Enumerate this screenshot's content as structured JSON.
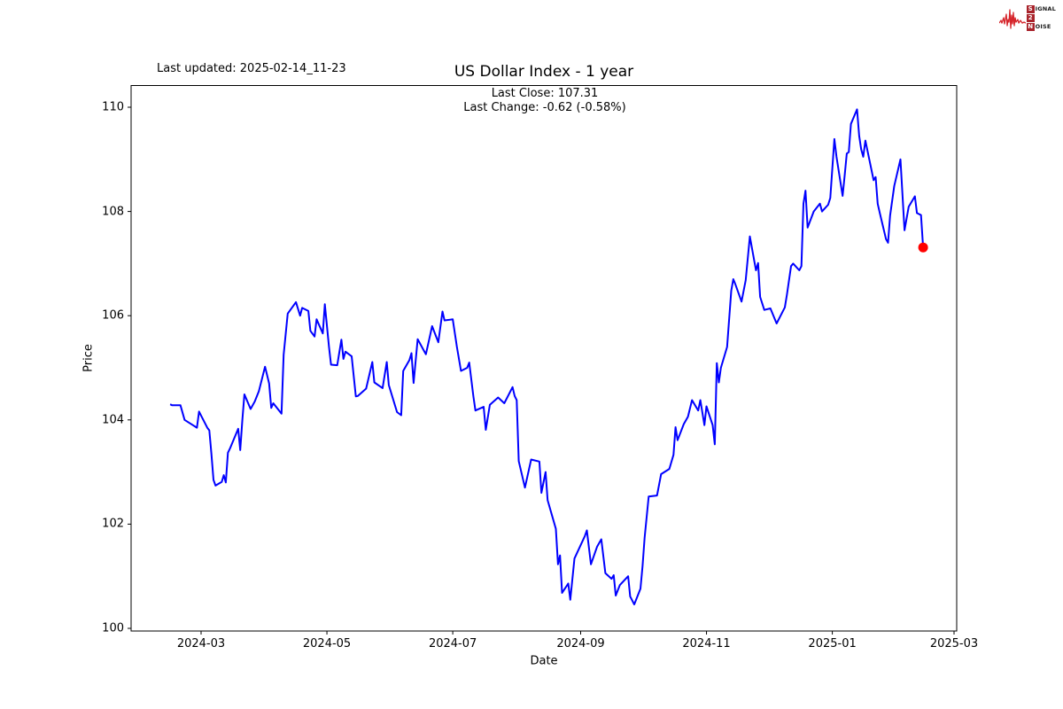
{
  "header": {
    "last_updated": "Last updated: 2025-02-14_11-23",
    "title": "US Dollar Index - 1 year",
    "annotation_line1": "Last Close: 107.31",
    "annotation_line2": "Last Change: -0.62 (-0.58%)"
  },
  "logo": {
    "word1_initial": "S",
    "word1_rest": "IGNAL",
    "word2": "2",
    "word3_initial": "N",
    "word3_rest": "OISE",
    "waveform_color": "#d6252b",
    "box_color": "#a8232b"
  },
  "chart_data": {
    "type": "line",
    "title": "US Dollar Index - 1 year",
    "xlabel": "Date",
    "ylabel": "Price",
    "x_ticks": [
      "2024-03",
      "2024-05",
      "2024-07",
      "2024-09",
      "2024-11",
      "2025-01",
      "2025-03"
    ],
    "y_ticks": [
      100,
      102,
      104,
      106,
      108,
      110
    ],
    "ylim": [
      99.95,
      110.45
    ],
    "xlim": [
      "2024-01-28",
      "2025-03-03"
    ],
    "grid": false,
    "legend": null,
    "line_color": "#0000ff",
    "last_point_color": "#ff0000",
    "last_close": 107.31,
    "last_change": -0.62,
    "last_change_pct": "-0.58%",
    "series": [
      {
        "name": "US Dollar Index",
        "points": [
          [
            "2024-02-15",
            104.3
          ],
          [
            "2024-02-16",
            104.28
          ],
          [
            "2024-02-20",
            104.28
          ],
          [
            "2024-02-22",
            104.0
          ],
          [
            "2024-02-26",
            103.9
          ],
          [
            "2024-02-28",
            103.85
          ],
          [
            "2024-02-29",
            104.16
          ],
          [
            "2024-03-04",
            103.85
          ],
          [
            "2024-03-05",
            103.8
          ],
          [
            "2024-03-06",
            103.36
          ],
          [
            "2024-03-07",
            102.85
          ],
          [
            "2024-03-08",
            102.74
          ],
          [
            "2024-03-11",
            102.81
          ],
          [
            "2024-03-12",
            102.94
          ],
          [
            "2024-03-13",
            102.8
          ],
          [
            "2024-03-14",
            103.37
          ],
          [
            "2024-03-15",
            103.45
          ],
          [
            "2024-03-19",
            103.83
          ],
          [
            "2024-03-20",
            103.42
          ],
          [
            "2024-03-21",
            104.0
          ],
          [
            "2024-03-22",
            104.49
          ],
          [
            "2024-03-25",
            104.21
          ],
          [
            "2024-03-27",
            104.35
          ],
          [
            "2024-03-29",
            104.55
          ],
          [
            "2024-04-01",
            105.02
          ],
          [
            "2024-04-03",
            104.7
          ],
          [
            "2024-04-04",
            104.23
          ],
          [
            "2024-04-05",
            104.32
          ],
          [
            "2024-04-09",
            104.12
          ],
          [
            "2024-04-10",
            105.25
          ],
          [
            "2024-04-12",
            106.04
          ],
          [
            "2024-04-16",
            106.26
          ],
          [
            "2024-04-18",
            106.0
          ],
          [
            "2024-04-19",
            106.15
          ],
          [
            "2024-04-22",
            106.09
          ],
          [
            "2024-04-23",
            105.71
          ],
          [
            "2024-04-25",
            105.6
          ],
          [
            "2024-04-26",
            105.93
          ],
          [
            "2024-04-29",
            105.66
          ],
          [
            "2024-04-30",
            106.22
          ],
          [
            "2024-05-02",
            105.4
          ],
          [
            "2024-05-03",
            105.06
          ],
          [
            "2024-05-06",
            105.05
          ],
          [
            "2024-05-08",
            105.54
          ],
          [
            "2024-05-09",
            105.17
          ],
          [
            "2024-05-10",
            105.31
          ],
          [
            "2024-05-13",
            105.22
          ],
          [
            "2024-05-15",
            104.45
          ],
          [
            "2024-05-16",
            104.46
          ],
          [
            "2024-05-20",
            104.6
          ],
          [
            "2024-05-23",
            105.11
          ],
          [
            "2024-05-24",
            104.72
          ],
          [
            "2024-05-28",
            104.61
          ],
          [
            "2024-05-30",
            105.11
          ],
          [
            "2024-05-31",
            104.67
          ],
          [
            "2024-06-04",
            104.15
          ],
          [
            "2024-06-06",
            104.09
          ],
          [
            "2024-06-07",
            104.94
          ],
          [
            "2024-06-10",
            105.15
          ],
          [
            "2024-06-11",
            105.28
          ],
          [
            "2024-06-12",
            104.71
          ],
          [
            "2024-06-14",
            105.55
          ],
          [
            "2024-06-17",
            105.33
          ],
          [
            "2024-06-18",
            105.26
          ],
          [
            "2024-06-21",
            105.8
          ],
          [
            "2024-06-24",
            105.49
          ],
          [
            "2024-06-26",
            106.08
          ],
          [
            "2024-06-27",
            105.91
          ],
          [
            "2024-07-01",
            105.93
          ],
          [
            "2024-07-03",
            105.4
          ],
          [
            "2024-07-05",
            104.94
          ],
          [
            "2024-07-08",
            105.0
          ],
          [
            "2024-07-09",
            105.1
          ],
          [
            "2024-07-11",
            104.45
          ],
          [
            "2024-07-12",
            104.18
          ],
          [
            "2024-07-16",
            104.25
          ],
          [
            "2024-07-17",
            103.81
          ],
          [
            "2024-07-19",
            104.29
          ],
          [
            "2024-07-23",
            104.43
          ],
          [
            "2024-07-26",
            104.32
          ],
          [
            "2024-07-30",
            104.63
          ],
          [
            "2024-07-31",
            104.46
          ],
          [
            "2024-08-01",
            104.38
          ],
          [
            "2024-08-02",
            103.21
          ],
          [
            "2024-08-05",
            102.7
          ],
          [
            "2024-08-08",
            103.24
          ],
          [
            "2024-08-12",
            103.2
          ],
          [
            "2024-08-13",
            102.6
          ],
          [
            "2024-08-15",
            103.0
          ],
          [
            "2024-08-16",
            102.46
          ],
          [
            "2024-08-20",
            101.91
          ],
          [
            "2024-08-21",
            101.23
          ],
          [
            "2024-08-22",
            101.4
          ],
          [
            "2024-08-23",
            100.68
          ],
          [
            "2024-08-26",
            100.86
          ],
          [
            "2024-08-27",
            100.55
          ],
          [
            "2024-08-29",
            101.34
          ],
          [
            "2024-09-03",
            101.77
          ],
          [
            "2024-09-04",
            101.88
          ],
          [
            "2024-09-06",
            101.23
          ],
          [
            "2024-09-09",
            101.57
          ],
          [
            "2024-09-11",
            101.71
          ],
          [
            "2024-09-13",
            101.06
          ],
          [
            "2024-09-16",
            100.95
          ],
          [
            "2024-09-17",
            101.02
          ],
          [
            "2024-09-18",
            100.63
          ],
          [
            "2024-09-20",
            100.83
          ],
          [
            "2024-09-24",
            101.0
          ],
          [
            "2024-09-25",
            100.61
          ],
          [
            "2024-09-27",
            100.46
          ],
          [
            "2024-09-30",
            100.76
          ],
          [
            "2024-10-01",
            101.2
          ],
          [
            "2024-10-02",
            101.74
          ],
          [
            "2024-10-04",
            102.53
          ],
          [
            "2024-10-08",
            102.55
          ],
          [
            "2024-10-10",
            102.96
          ],
          [
            "2024-10-14",
            103.06
          ],
          [
            "2024-10-16",
            103.33
          ],
          [
            "2024-10-17",
            103.86
          ],
          [
            "2024-10-18",
            103.61
          ],
          [
            "2024-10-21",
            103.92
          ],
          [
            "2024-10-23",
            104.06
          ],
          [
            "2024-10-25",
            104.38
          ],
          [
            "2024-10-28",
            104.18
          ],
          [
            "2024-10-29",
            104.38
          ],
          [
            "2024-10-31",
            103.9
          ],
          [
            "2024-11-01",
            104.26
          ],
          [
            "2024-11-04",
            103.9
          ],
          [
            "2024-11-05",
            103.53
          ],
          [
            "2024-11-06",
            105.09
          ],
          [
            "2024-11-07",
            104.72
          ],
          [
            "2024-11-08",
            105.0
          ],
          [
            "2024-11-11",
            105.4
          ],
          [
            "2024-11-13",
            106.48
          ],
          [
            "2024-11-14",
            106.7
          ],
          [
            "2024-11-15",
            106.6
          ],
          [
            "2024-11-18",
            106.27
          ],
          [
            "2024-11-20",
            106.68
          ],
          [
            "2024-11-22",
            107.52
          ],
          [
            "2024-11-25",
            106.87
          ],
          [
            "2024-11-26",
            107.01
          ],
          [
            "2024-11-27",
            106.36
          ],
          [
            "2024-11-29",
            106.11
          ],
          [
            "2024-12-02",
            106.14
          ],
          [
            "2024-12-05",
            105.85
          ],
          [
            "2024-12-09",
            106.16
          ],
          [
            "2024-12-10",
            106.41
          ],
          [
            "2024-12-12",
            106.95
          ],
          [
            "2024-12-13",
            107.0
          ],
          [
            "2024-12-16",
            106.87
          ],
          [
            "2024-12-17",
            106.95
          ],
          [
            "2024-12-18",
            108.15
          ],
          [
            "2024-12-19",
            108.4
          ],
          [
            "2024-12-20",
            107.69
          ],
          [
            "2024-12-23",
            108.0
          ],
          [
            "2024-12-26",
            108.15
          ],
          [
            "2024-12-27",
            108.0
          ],
          [
            "2024-12-30",
            108.13
          ],
          [
            "2024-12-31",
            108.26
          ],
          [
            "2025-01-02",
            109.39
          ],
          [
            "2025-01-03",
            109.05
          ],
          [
            "2025-01-06",
            108.3
          ],
          [
            "2025-01-07",
            108.7
          ],
          [
            "2025-01-08",
            109.11
          ],
          [
            "2025-01-09",
            109.14
          ],
          [
            "2025-01-10",
            109.68
          ],
          [
            "2025-01-13",
            109.96
          ],
          [
            "2025-01-14",
            109.45
          ],
          [
            "2025-01-15",
            109.19
          ],
          [
            "2025-01-16",
            109.05
          ],
          [
            "2025-01-17",
            109.36
          ],
          [
            "2025-01-21",
            108.6
          ],
          [
            "2025-01-22",
            108.66
          ],
          [
            "2025-01-23",
            108.15
          ],
          [
            "2025-01-24",
            107.97
          ],
          [
            "2025-01-27",
            107.47
          ],
          [
            "2025-01-28",
            107.4
          ],
          [
            "2025-01-29",
            107.92
          ],
          [
            "2025-01-31",
            108.49
          ],
          [
            "2025-02-03",
            109.0
          ],
          [
            "2025-02-05",
            107.64
          ],
          [
            "2025-02-06",
            107.86
          ],
          [
            "2025-02-07",
            108.09
          ],
          [
            "2025-02-10",
            108.29
          ],
          [
            "2025-02-11",
            107.97
          ],
          [
            "2025-02-13",
            107.93
          ],
          [
            "2025-02-14",
            107.31
          ]
        ]
      }
    ]
  }
}
